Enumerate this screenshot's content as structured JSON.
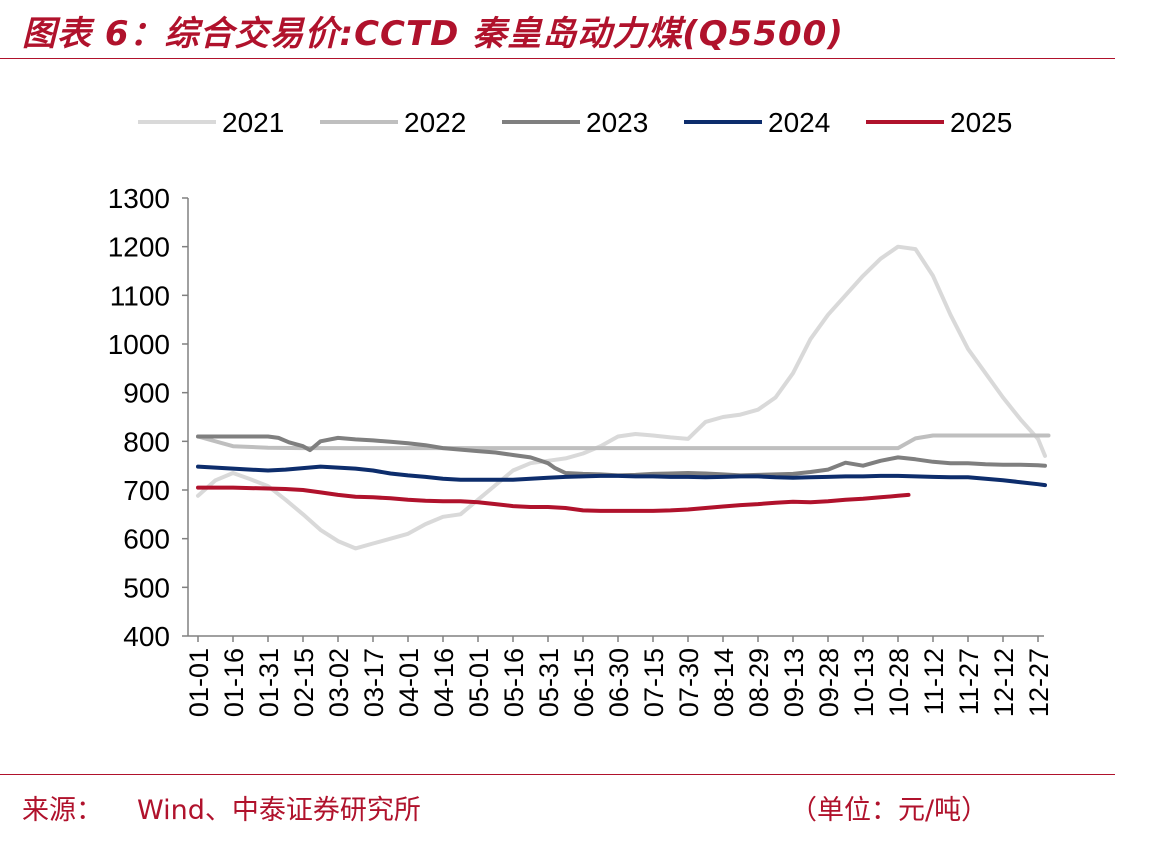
{
  "header": {
    "title": "图表 6：综合交易价:CCTD 秦皇岛动力煤(Q5500)"
  },
  "footer": {
    "source_label": "来源：",
    "source_text": "Wind、中泰证券研究所",
    "unit": "（单位：元/吨）"
  },
  "chart_data": {
    "type": "line",
    "title": "",
    "xlabel": "",
    "ylabel": "",
    "ylim": [
      400,
      1300
    ],
    "yticks": [
      400,
      500,
      600,
      700,
      800,
      900,
      1000,
      1100,
      1200,
      1300
    ],
    "legend_position": "top",
    "grid": false,
    "categories": [
      "01-01",
      "01-16",
      "01-31",
      "02-15",
      "03-02",
      "03-17",
      "04-01",
      "04-16",
      "05-01",
      "05-16",
      "05-31",
      "06-15",
      "06-30",
      "07-15",
      "07-30",
      "08-14",
      "08-29",
      "09-13",
      "09-28",
      "10-13",
      "10-28",
      "11-12",
      "11-27",
      "12-12",
      "12-27"
    ],
    "series": [
      {
        "name": "2021",
        "color": "#d9d9d9",
        "x": [
          0,
          0.5,
          1,
          1.5,
          2,
          2.5,
          3,
          3.5,
          4,
          4.5,
          5,
          5.5,
          6,
          6.5,
          7,
          7.5,
          8,
          8.5,
          9,
          9.5,
          10,
          10.5,
          11,
          11.5,
          12,
          12.5,
          13,
          13.5,
          14,
          14.5,
          15,
          15.5,
          16,
          16.5,
          17,
          17.5,
          18,
          18.5,
          19,
          19.5,
          20,
          20.5,
          21,
          21.5,
          22,
          22.5,
          23,
          23.5,
          24,
          24.2
        ],
        "values": [
          688,
          720,
          735,
          722,
          708,
          680,
          650,
          618,
          595,
          580,
          590,
          600,
          610,
          630,
          645,
          650,
          680,
          710,
          740,
          755,
          760,
          765,
          775,
          790,
          810,
          815,
          812,
          808,
          805,
          840,
          850,
          855,
          865,
          890,
          940,
          1010,
          1060,
          1100,
          1140,
          1175,
          1200,
          1195,
          1140,
          1060,
          990,
          940,
          890,
          845,
          805,
          770
        ]
      },
      {
        "name": "2022",
        "color": "#bfbfbf",
        "x": [
          0,
          1,
          2,
          3,
          4,
          5,
          6,
          7,
          8,
          9,
          10,
          11,
          12,
          13,
          14,
          15,
          16,
          17,
          18,
          19,
          20,
          20.5,
          21,
          22,
          23,
          24,
          24.3
        ],
        "values": [
          810,
          790,
          787,
          786,
          786,
          786,
          786,
          786,
          786,
          786,
          786,
          786,
          786,
          786,
          786,
          786,
          786,
          786,
          786,
          786,
          786,
          806,
          812,
          812,
          812,
          812,
          812
        ]
      },
      {
        "name": "2023",
        "color": "#7f7f7f",
        "x": [
          0,
          0.5,
          1,
          1.5,
          2,
          2.3,
          2.6,
          3,
          3.2,
          3.5,
          4,
          4.5,
          5,
          5.5,
          6,
          6.5,
          7,
          7.5,
          8,
          8.5,
          9,
          9.5,
          10,
          10.2,
          10.5,
          11,
          11.5,
          12,
          12.5,
          13,
          13.5,
          14,
          14.5,
          15,
          15.5,
          16,
          16.5,
          17,
          17.5,
          18,
          18.5,
          19,
          19.5,
          20,
          20.5,
          21,
          21.5,
          22,
          22.5,
          23,
          23.5,
          24,
          24.2
        ],
        "values": [
          810,
          810,
          810,
          810,
          810,
          807,
          798,
          790,
          782,
          800,
          807,
          804,
          802,
          799,
          796,
          792,
          786,
          783,
          780,
          777,
          772,
          767,
          755,
          745,
          735,
          733,
          732,
          730,
          731,
          733,
          734,
          735,
          734,
          732,
          730,
          731,
          732,
          733,
          737,
          742,
          756,
          750,
          760,
          767,
          763,
          758,
          755,
          755,
          753,
          752,
          752,
          751,
          750
        ]
      },
      {
        "name": "2024",
        "color": "#0d2d6c",
        "x": [
          0,
          0.5,
          1,
          1.5,
          2,
          2.5,
          3,
          3.5,
          4,
          4.5,
          5,
          5.5,
          6,
          6.5,
          7,
          7.5,
          8,
          8.5,
          9,
          9.5,
          10,
          10.5,
          11,
          11.5,
          12,
          12.5,
          13,
          13.5,
          14,
          14.5,
          15,
          15.5,
          16,
          16.5,
          17,
          17.5,
          18,
          18.5,
          19,
          19.5,
          20,
          20.5,
          21,
          21.5,
          22,
          22.5,
          23,
          23.5,
          24,
          24.2
        ],
        "values": [
          748,
          746,
          744,
          742,
          740,
          742,
          745,
          748,
          746,
          744,
          740,
          734,
          730,
          727,
          723,
          721,
          721,
          721,
          721,
          723,
          725,
          727,
          728,
          729,
          729,
          728,
          728,
          727,
          727,
          726,
          727,
          728,
          728,
          726,
          725,
          726,
          727,
          728,
          728,
          729,
          729,
          728,
          727,
          726,
          726,
          723,
          720,
          716,
          712,
          710
        ]
      },
      {
        "name": "2025",
        "color": "#b0122c",
        "x": [
          0,
          0.5,
          1,
          1.5,
          2,
          2.5,
          3,
          3.5,
          4,
          4.5,
          5,
          5.5,
          6,
          6.5,
          7,
          7.5,
          8,
          8.5,
          9,
          9.5,
          10,
          10.5,
          11,
          11.5,
          12,
          12.5,
          13,
          13.5,
          14,
          14.5,
          15,
          15.5,
          16,
          16.5,
          17,
          17.5,
          18,
          18.5,
          19,
          19.5,
          20,
          20.3
        ],
        "values": [
          705,
          705,
          705,
          704,
          703,
          702,
          700,
          695,
          690,
          686,
          685,
          683,
          680,
          678,
          677,
          677,
          675,
          671,
          667,
          665,
          665,
          663,
          658,
          657,
          657,
          657,
          657,
          658,
          660,
          663,
          666,
          669,
          671,
          674,
          676,
          675,
          677,
          680,
          682,
          685,
          688,
          690
        ]
      }
    ]
  }
}
